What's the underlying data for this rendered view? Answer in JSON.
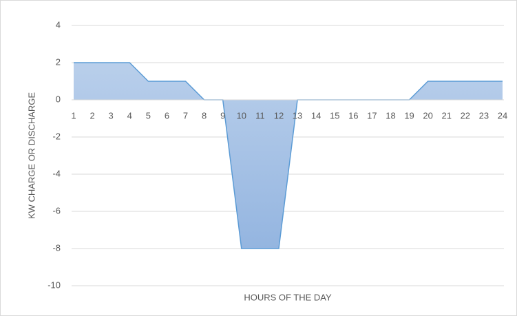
{
  "chart_data": {
    "type": "area",
    "x_label": "HOURS OF THE DAY",
    "y_label": "KW CHARGE OR DISCHARGE",
    "categories": [
      "1",
      "2",
      "3",
      "4",
      "5",
      "6",
      "7",
      "8",
      "9",
      "10",
      "11",
      "12",
      "13",
      "14",
      "15",
      "16",
      "17",
      "18",
      "19",
      "20",
      "21",
      "22",
      "23",
      "24"
    ],
    "values": [
      2,
      2,
      2,
      2,
      1,
      1,
      1,
      0,
      0,
      -8,
      -8,
      -8,
      0,
      0,
      0,
      0,
      0,
      0,
      0,
      1,
      1,
      1,
      1,
      1
    ],
    "color": "#5b9bd5",
    "ylim": [
      -10,
      4
    ],
    "yticks": [
      -10,
      -8,
      -6,
      -4,
      -2,
      0,
      2,
      4
    ],
    "grid": true
  }
}
